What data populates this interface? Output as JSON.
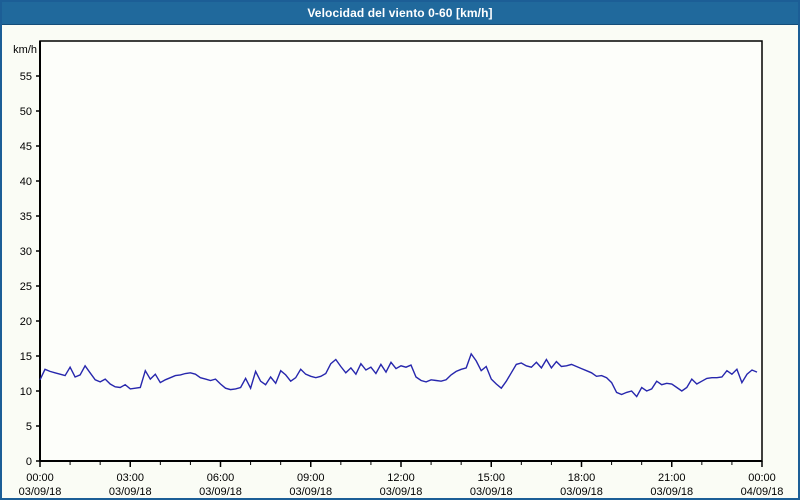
{
  "window": {
    "title": "Velocidad del viento 0-60 [km/h]"
  },
  "colors": {
    "titlebar_bg": "#20699c",
    "titlebar_text": "#ffffff",
    "window_border": "#1c5e96",
    "background": "#fafcf5",
    "plot_background": "#fdfefa",
    "series_line": "#2727ad",
    "grid": "#000000",
    "axis": "#000000",
    "tick_text": "#000000"
  },
  "chart_data": {
    "type": "line",
    "title": "Velocidad del viento 0-60 [km/h]",
    "xlabel": "",
    "ylabel": "km/h",
    "ylim": [
      0,
      60
    ],
    "y_ticks": [
      0,
      5,
      10,
      15,
      20,
      25,
      30,
      35,
      40,
      45,
      50,
      55
    ],
    "x_range_minutes": [
      0,
      1440
    ],
    "x_major_every_minutes": 180,
    "x_minor_every_minutes": 60,
    "grid": "dashed",
    "legend": "none",
    "x_ticks": [
      {
        "time": "00:00",
        "date": "03/09/18"
      },
      {
        "time": "03:00",
        "date": "03/09/18"
      },
      {
        "time": "06:00",
        "date": "03/09/18"
      },
      {
        "time": "09:00",
        "date": "03/09/18"
      },
      {
        "time": "12:00",
        "date": "03/09/18"
      },
      {
        "time": "15:00",
        "date": "03/09/18"
      },
      {
        "time": "18:00",
        "date": "03/09/18"
      },
      {
        "time": "21:00",
        "date": "03/09/18"
      },
      {
        "time": "00:00",
        "date": "04/09/18"
      }
    ],
    "series": [
      {
        "name": "Velocidad del viento",
        "color": "#2727ad",
        "x_start_minutes": 0,
        "x_step_minutes": 10,
        "values": [
          11.6,
          13.1,
          12.8,
          12.6,
          12.4,
          12.2,
          13.4,
          12.0,
          12.3,
          13.6,
          12.6,
          11.6,
          11.3,
          11.7,
          11.0,
          10.6,
          10.5,
          10.9,
          10.3,
          10.4,
          10.5,
          12.9,
          11.7,
          12.4,
          11.2,
          11.6,
          11.9,
          12.2,
          12.3,
          12.5,
          12.6,
          12.4,
          11.9,
          11.7,
          11.5,
          11.7,
          11.0,
          10.4,
          10.2,
          10.3,
          10.5,
          11.8,
          10.4,
          12.8,
          11.4,
          10.9,
          12.0,
          11.1,
          12.9,
          12.3,
          11.4,
          11.9,
          13.1,
          12.4,
          12.1,
          11.9,
          12.1,
          12.5,
          13.9,
          14.5,
          13.5,
          12.6,
          13.3,
          12.4,
          13.9,
          13.0,
          13.4,
          12.5,
          13.8,
          12.7,
          14.1,
          13.2,
          13.6,
          13.4,
          13.7,
          12.0,
          11.5,
          11.3,
          11.6,
          11.5,
          11.4,
          11.6,
          12.3,
          12.8,
          13.1,
          13.3,
          15.3,
          14.3,
          12.9,
          13.5,
          11.7,
          11.0,
          10.4,
          11.4,
          12.6,
          13.8,
          14.0,
          13.6,
          13.4,
          14.1,
          13.3,
          14.5,
          13.3,
          14.2,
          13.5,
          13.6,
          13.8,
          13.5,
          13.2,
          12.9,
          12.6,
          12.1,
          12.2,
          11.9,
          11.2,
          9.8,
          9.5,
          9.8,
          10.0,
          9.2,
          10.5,
          10.0,
          10.3,
          11.4,
          10.9,
          11.1,
          11.0,
          10.5,
          10.0,
          10.5,
          11.7,
          11.0,
          11.4,
          11.8,
          11.9,
          11.9,
          12.0,
          12.9,
          12.4,
          13.1,
          11.2,
          12.4,
          13.0,
          12.7
        ]
      }
    ]
  }
}
